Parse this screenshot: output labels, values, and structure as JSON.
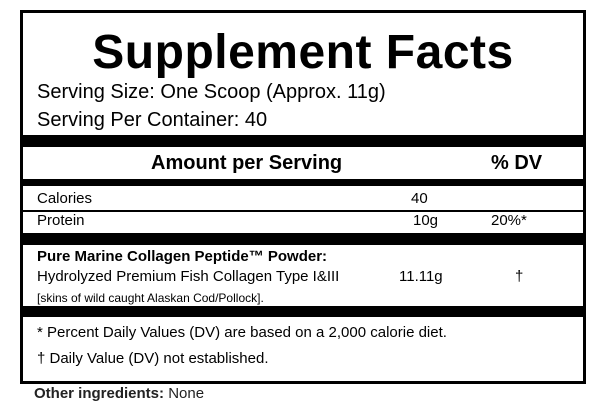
{
  "label": {
    "title": "Supplement Facts",
    "serving_size": "Serving Size:  One Scoop (Approx. 11g)",
    "servings_per_container": "Serving Per Container: 40",
    "header_amount": "Amount per Serving",
    "header_dv": "% DV",
    "rows": [
      {
        "name": "Calories",
        "amount": "40",
        "dv": ""
      },
      {
        "name": "Protein",
        "amount": "10g",
        "dv": "20%*"
      }
    ],
    "blend_name": "Pure Marine Collagen Peptide™ Powder:",
    "blend_ingredient": "Hydrolyzed Premium Fish Collagen Type I&III",
    "blend_amount": "11.11g",
    "blend_dv": "†",
    "blend_source": "[skins of wild caught Alaskan Cod/Pollock].",
    "footnote_1": "* Percent Daily Values (DV) are based on a 2,000 calorie diet.",
    "footnote_2": "† Daily Value (DV) not established."
  },
  "other_ingredients": {
    "label": "Other ingredients:",
    "value": "None"
  }
}
